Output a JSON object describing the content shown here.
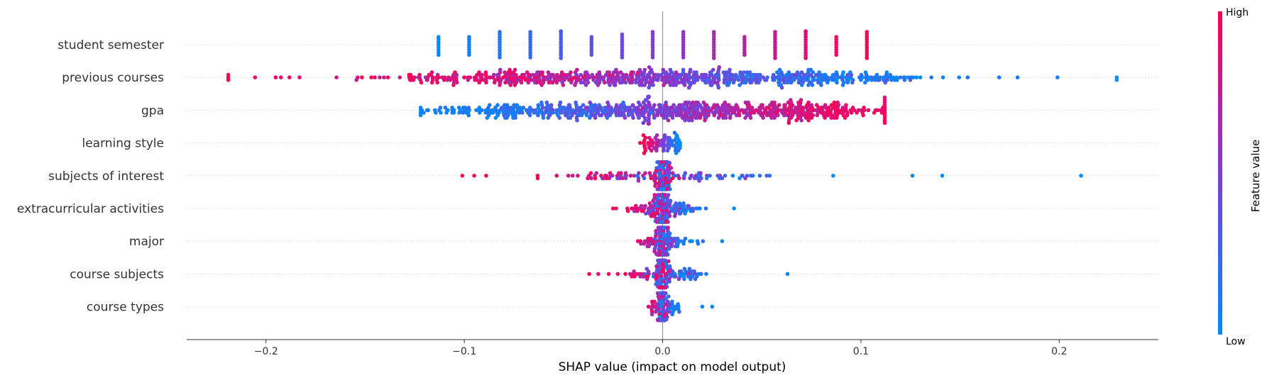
{
  "chart_data": {
    "type": "scatter",
    "subtype": "shap-beeswarm",
    "title": "",
    "xlabel": "SHAP value (impact on model output)",
    "ylabel": "",
    "xlim": [
      -0.24,
      0.25
    ],
    "xticks": [
      -0.2,
      -0.1,
      0.0,
      0.1,
      0.2
    ],
    "xtick_labels": [
      "−0.2",
      "−0.1",
      "0.0",
      "0.1",
      "0.2"
    ],
    "grid": "horizontal dotted lines per feature",
    "zero_line": true,
    "features": [
      "student semester",
      "previous courses",
      "gpa",
      "learning style",
      "subjects of interest",
      "extracurricular activities",
      "major",
      "course subjects",
      "course types"
    ],
    "feature_ranges": [
      {
        "feature": "student semester",
        "min": -0.113,
        "max": 0.103,
        "pattern": "15 discrete vertical clusters, low values negative, high values positive"
      },
      {
        "feature": "previous courses",
        "min": -0.219,
        "max": 0.229,
        "pattern": "high values negative, low values positive"
      },
      {
        "feature": "gpa",
        "min": -0.122,
        "max": 0.112,
        "pattern": "low values negative, high values positive"
      },
      {
        "feature": "learning style",
        "min": -0.009,
        "max": 0.008,
        "pattern": "high values negative, low values positive"
      },
      {
        "feature": "subjects of interest",
        "min": -0.101,
        "max": 0.211,
        "pattern": "high values negative, low values positive"
      },
      {
        "feature": "extracurricular activities",
        "min": -0.025,
        "max": 0.036,
        "pattern": "high values negative, low values positive"
      },
      {
        "feature": "major",
        "min": -0.017,
        "max": 0.03,
        "pattern": "high values negative, low values positive"
      },
      {
        "feature": "course subjects",
        "min": -0.037,
        "max": 0.063,
        "pattern": "high values negative, low values positive"
      },
      {
        "feature": "course types",
        "min": -0.009,
        "max": 0.025,
        "pattern": "high values negative, low values positive"
      }
    ],
    "colorbar": {
      "title": "Feature value",
      "high_label": "High",
      "low_label": "Low",
      "high_color": "#ff0052",
      "low_color": "#008bfb",
      "mid_color": "#7e3dd6"
    }
  }
}
